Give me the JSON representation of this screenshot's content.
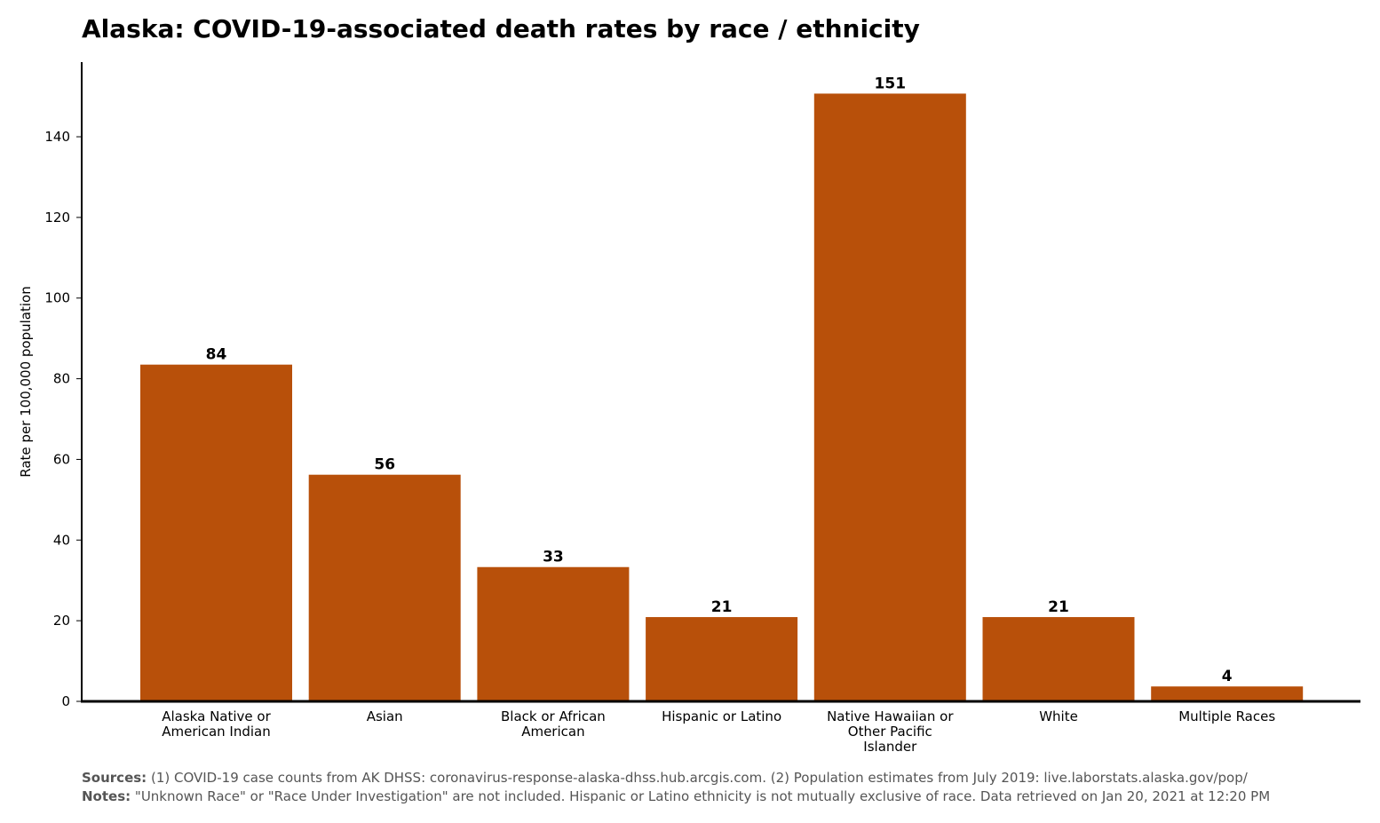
{
  "chart_data": {
    "type": "bar",
    "title": "Alaska: COVID-19-associated death rates by race / ethnicity",
    "xlabel": "",
    "ylabel": "Rate per 100,000 population",
    "categories": [
      [
        "Alaska Native or",
        "American Indian"
      ],
      [
        "Asian"
      ],
      [
        "Black or African",
        "American"
      ],
      [
        "Hispanic or Latino"
      ],
      [
        "Native Hawaiian or",
        "Other Pacific",
        "Islander"
      ],
      [
        "White"
      ],
      [
        "Multiple Races"
      ]
    ],
    "values": [
      83.5,
      56.2,
      33.3,
      20.9,
      150.7,
      20.9,
      3.7
    ],
    "value_labels": [
      "84",
      "56",
      "33",
      "21",
      "151",
      "21",
      "4"
    ],
    "ylim": [
      0,
      158.5
    ],
    "yticks": [
      0,
      20,
      40,
      60,
      80,
      100,
      120,
      140
    ],
    "bar_color": "#b8500a",
    "grid": false,
    "legend": "none"
  },
  "footer": {
    "sources_label": "Sources:",
    "sources_text": "(1) COVID-19 case counts from AK DHSS: coronavirus-response-alaska-dhss.hub.arcgis.com. (2) Population estimates from July 2019: live.laborstats.alaska.gov/pop/",
    "notes_label": "Notes:",
    "notes_text": "\"Unknown Race\" or \"Race Under Investigation\" are not included. Hispanic or Latino ethnicity is not mutually exclusive of race. Data retrieved on Jan 20, 2021 at 12:20 PM"
  }
}
